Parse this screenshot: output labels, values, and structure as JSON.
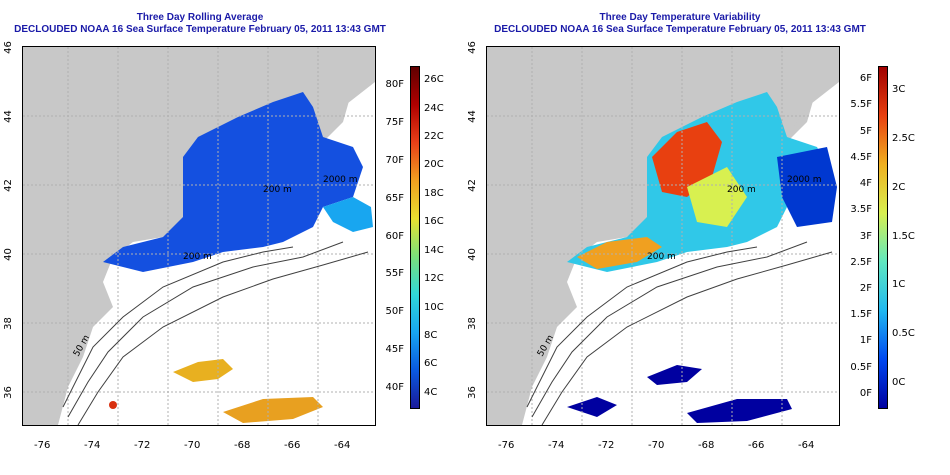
{
  "colors": {
    "land": "#c8c8c8",
    "sea": "#ffffff",
    "title": "#1a1aa8",
    "avg_bar": [
      "#1a1a9a",
      "#0a5ae0",
      "#18a6f0",
      "#30d8d8",
      "#7be07b",
      "#e8e030",
      "#f0a020",
      "#e84018",
      "#b00000",
      "#600000"
    ],
    "var_bar": [
      "#0000a0",
      "#0048f0",
      "#20b8f0",
      "#60e8c0",
      "#d8f050",
      "#f0b020",
      "#e84010",
      "#a00000"
    ]
  },
  "panels": [
    {
      "title_line1": "Three Day Rolling Average",
      "title_line2": "DECLOUDED NOAA 16 Sea Surface Temperature February 05, 2011 13:43 GMT",
      "y_ticks": [
        "46",
        "44",
        "42",
        "40",
        "38",
        "36"
      ],
      "x_ticks": [
        "-76",
        "-74",
        "-72",
        "-70",
        "-68",
        "-66",
        "-64"
      ],
      "contour_labels": [
        "50 m",
        "200 m",
        "200 m",
        "2000 m"
      ],
      "colorbar_left": [
        "80F",
        "75F",
        "70F",
        "65F",
        "60F",
        "55F",
        "50F",
        "45F",
        "40F"
      ],
      "colorbar_right": [
        "26C",
        "24C",
        "22C",
        "20C",
        "18C",
        "16C",
        "14C",
        "12C",
        "10C",
        "8C",
        "6C",
        "4C"
      ]
    },
    {
      "title_line1": "Three Day Temperature Variability",
      "title_line2": "DECLOUDED NOAA 16 Sea Surface Temperature February 05, 2011 13:43 GMT",
      "y_ticks": [
        "46",
        "44",
        "42",
        "40",
        "38",
        "36"
      ],
      "x_ticks": [
        "-76",
        "-74",
        "-72",
        "-70",
        "-68",
        "-66",
        "-64"
      ],
      "contour_labels": [
        "50 m",
        "200 m",
        "200 m",
        "2000 m"
      ],
      "colorbar_left": [
        "6F",
        "5.5F",
        "5F",
        "4.5F",
        "4F",
        "3.5F",
        "3F",
        "2.5F",
        "2F",
        "1.5F",
        "1F",
        "0.5F",
        "0F"
      ],
      "colorbar_right": [
        "3C",
        "2.5C",
        "2C",
        "1.5C",
        "1C",
        "0.5C",
        "0C"
      ]
    }
  ]
}
